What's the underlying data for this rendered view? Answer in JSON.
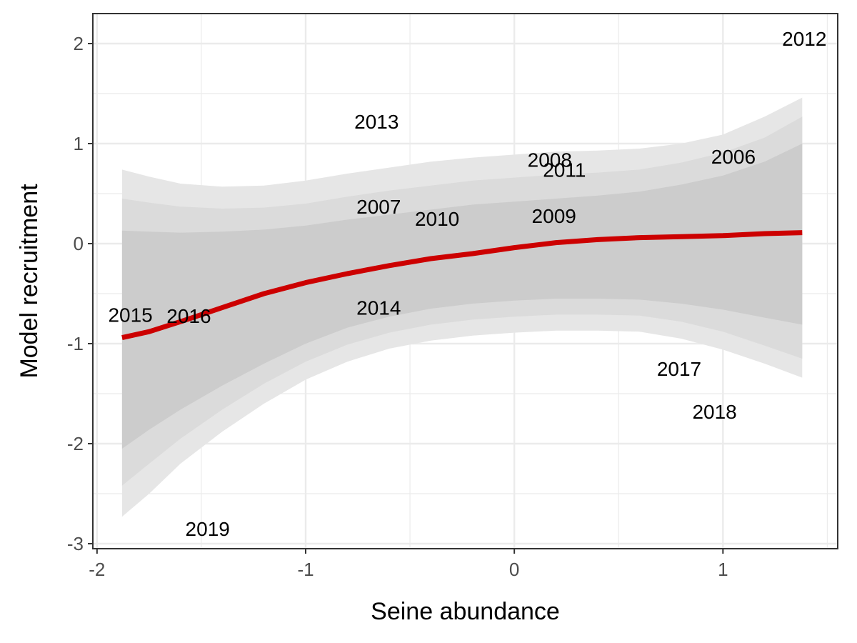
{
  "chart_data": {
    "type": "scatter",
    "title": "",
    "xlabel": "Seine abundance",
    "ylabel": "Model recruitment",
    "xlim": [
      -2.02,
      1.55
    ],
    "ylim": [
      -3.05,
      2.3
    ],
    "xticks": [
      -2,
      -1,
      0,
      1
    ],
    "yticks": [
      -3,
      -2,
      -1,
      0,
      1,
      2
    ],
    "xtick_labels": [
      "-2",
      "-1",
      "0",
      "1"
    ],
    "ytick_labels": [
      "-3",
      "-2",
      "-1",
      "0",
      "1",
      "2"
    ],
    "grid": true,
    "points": [
      {
        "label": "2006",
        "x": 1.05,
        "y": 0.87
      },
      {
        "label": "2007",
        "x": -0.65,
        "y": 0.37
      },
      {
        "label": "2008",
        "x": 0.17,
        "y": 0.84
      },
      {
        "label": "2009",
        "x": 0.19,
        "y": 0.28
      },
      {
        "label": "2010",
        "x": -0.37,
        "y": 0.25
      },
      {
        "label": "2011",
        "x": 0.24,
        "y": 0.74
      },
      {
        "label": "2012",
        "x": 1.39,
        "y": 2.05
      },
      {
        "label": "2013",
        "x": -0.66,
        "y": 1.22
      },
      {
        "label": "2014",
        "x": -0.65,
        "y": -0.64
      },
      {
        "label": "2015",
        "x": -1.84,
        "y": -0.71
      },
      {
        "label": "2016",
        "x": -1.56,
        "y": -0.72
      },
      {
        "label": "2017",
        "x": 0.79,
        "y": -1.25
      },
      {
        "label": "2018",
        "x": 0.96,
        "y": -1.68
      },
      {
        "label": "2019",
        "x": -1.47,
        "y": -2.85
      }
    ],
    "fit_line": {
      "color": "#cc0000",
      "x": [
        -1.88,
        -1.75,
        -1.6,
        -1.4,
        -1.2,
        -1.0,
        -0.8,
        -0.6,
        -0.4,
        -0.2,
        0.0,
        0.2,
        0.4,
        0.6,
        0.8,
        1.0,
        1.2,
        1.38
      ],
      "y": [
        -0.94,
        -0.88,
        -0.78,
        -0.64,
        -0.5,
        -0.39,
        -0.3,
        -0.22,
        -0.15,
        -0.1,
        -0.04,
        0.01,
        0.04,
        0.06,
        0.07,
        0.08,
        0.1,
        0.11
      ]
    },
    "confidence_bands": [
      {
        "level": "outer",
        "color": "#e6e6e6",
        "x": [
          -1.88,
          -1.75,
          -1.6,
          -1.4,
          -1.2,
          -1.0,
          -0.8,
          -0.6,
          -0.4,
          -0.2,
          0.0,
          0.2,
          0.4,
          0.6,
          0.8,
          1.0,
          1.2,
          1.38
        ],
        "upper": [
          0.74,
          0.67,
          0.6,
          0.57,
          0.58,
          0.63,
          0.7,
          0.76,
          0.82,
          0.86,
          0.89,
          0.92,
          0.93,
          0.95,
          1.0,
          1.09,
          1.27,
          1.46
        ],
        "lower": [
          -2.73,
          -2.5,
          -2.2,
          -1.88,
          -1.6,
          -1.36,
          -1.18,
          -1.05,
          -0.97,
          -0.92,
          -0.89,
          -0.87,
          -0.87,
          -0.88,
          -0.95,
          -1.06,
          -1.2,
          -1.34
        ]
      },
      {
        "level": "middle",
        "color": "#dbdbdb",
        "x": [
          -1.88,
          -1.75,
          -1.6,
          -1.4,
          -1.2,
          -1.0,
          -0.8,
          -0.6,
          -0.4,
          -0.2,
          0.0,
          0.2,
          0.4,
          0.6,
          0.8,
          1.0,
          1.2,
          1.38
        ],
        "upper": [
          0.45,
          0.41,
          0.37,
          0.35,
          0.36,
          0.4,
          0.47,
          0.53,
          0.58,
          0.63,
          0.66,
          0.69,
          0.71,
          0.74,
          0.81,
          0.91,
          1.06,
          1.27
        ],
        "lower": [
          -2.42,
          -2.2,
          -1.95,
          -1.66,
          -1.4,
          -1.18,
          -1.01,
          -0.89,
          -0.81,
          -0.76,
          -0.73,
          -0.71,
          -0.71,
          -0.72,
          -0.78,
          -0.88,
          -1.02,
          -1.15
        ]
      },
      {
        "level": "inner",
        "color": "#cccccc",
        "x": [
          -1.88,
          -1.75,
          -1.6,
          -1.4,
          -1.2,
          -1.0,
          -0.8,
          -0.6,
          -0.4,
          -0.2,
          0.0,
          0.2,
          0.4,
          0.6,
          0.8,
          1.0,
          1.2,
          1.38
        ],
        "upper": [
          0.13,
          0.12,
          0.11,
          0.12,
          0.14,
          0.18,
          0.24,
          0.29,
          0.34,
          0.39,
          0.42,
          0.45,
          0.48,
          0.52,
          0.59,
          0.68,
          0.82,
          1.0
        ],
        "lower": [
          -2.05,
          -1.86,
          -1.66,
          -1.42,
          -1.2,
          -1.0,
          -0.84,
          -0.73,
          -0.65,
          -0.6,
          -0.57,
          -0.55,
          -0.55,
          -0.56,
          -0.6,
          -0.66,
          -0.74,
          -0.81
        ]
      }
    ]
  }
}
